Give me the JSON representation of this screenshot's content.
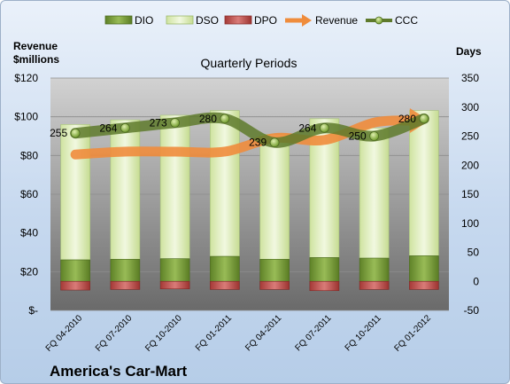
{
  "chart_data": {
    "type": "bar",
    "title": "Quarterly Periods",
    "company": "America's Car-Mart",
    "y_left_label": [
      "Revenue",
      "$millions"
    ],
    "y_right_label": "Days",
    "y_left_ticks": [
      "$-",
      "$20",
      "$40",
      "$60",
      "$80",
      "$100",
      "$120"
    ],
    "y_right_ticks": [
      "-50",
      "0",
      "50",
      "100",
      "150",
      "200",
      "250",
      "300",
      "350"
    ],
    "ylim_left": [
      0,
      120
    ],
    "ylim_right": [
      -50,
      350
    ],
    "legend_position": "top",
    "categories": [
      "FQ 04-2010",
      "FQ 07-2010",
      "FQ 10-2010",
      "FQ 01-2011",
      "FQ 04-2011",
      "FQ 07-2011",
      "FQ 10-2011",
      "FQ 01-2012"
    ],
    "series": [
      {
        "name": "DIO",
        "type": "bar",
        "axis": "right",
        "color": "#7a9c3a",
        "values": [
          37,
          38,
          39,
          43,
          38,
          41,
          40,
          44
        ]
      },
      {
        "name": "DSO",
        "type": "bar",
        "axis": "right",
        "color": "#e4f0c4",
        "values": [
          233,
          240,
          247,
          251,
          215,
          239,
          224,
          250
        ]
      },
      {
        "name": "DPO",
        "type": "bar",
        "axis": "right",
        "color": "#c0504d",
        "values": [
          -15,
          -14,
          -13,
          -14,
          -14,
          -16,
          -14,
          -14
        ]
      },
      {
        "name": "Revenue",
        "type": "line",
        "axis": "left",
        "color": "#ef8c3c",
        "values": [
          80.5,
          82,
          82,
          82,
          89,
          88,
          97,
          98
        ]
      },
      {
        "name": "CCC",
        "type": "line",
        "axis": "right",
        "color": "#5e7a2c",
        "values": [
          255,
          264,
          273,
          280,
          239,
          264,
          250,
          280
        ],
        "labels": [
          "255",
          "264",
          "273",
          "280",
          "239",
          "264",
          "250",
          "280"
        ]
      }
    ]
  }
}
